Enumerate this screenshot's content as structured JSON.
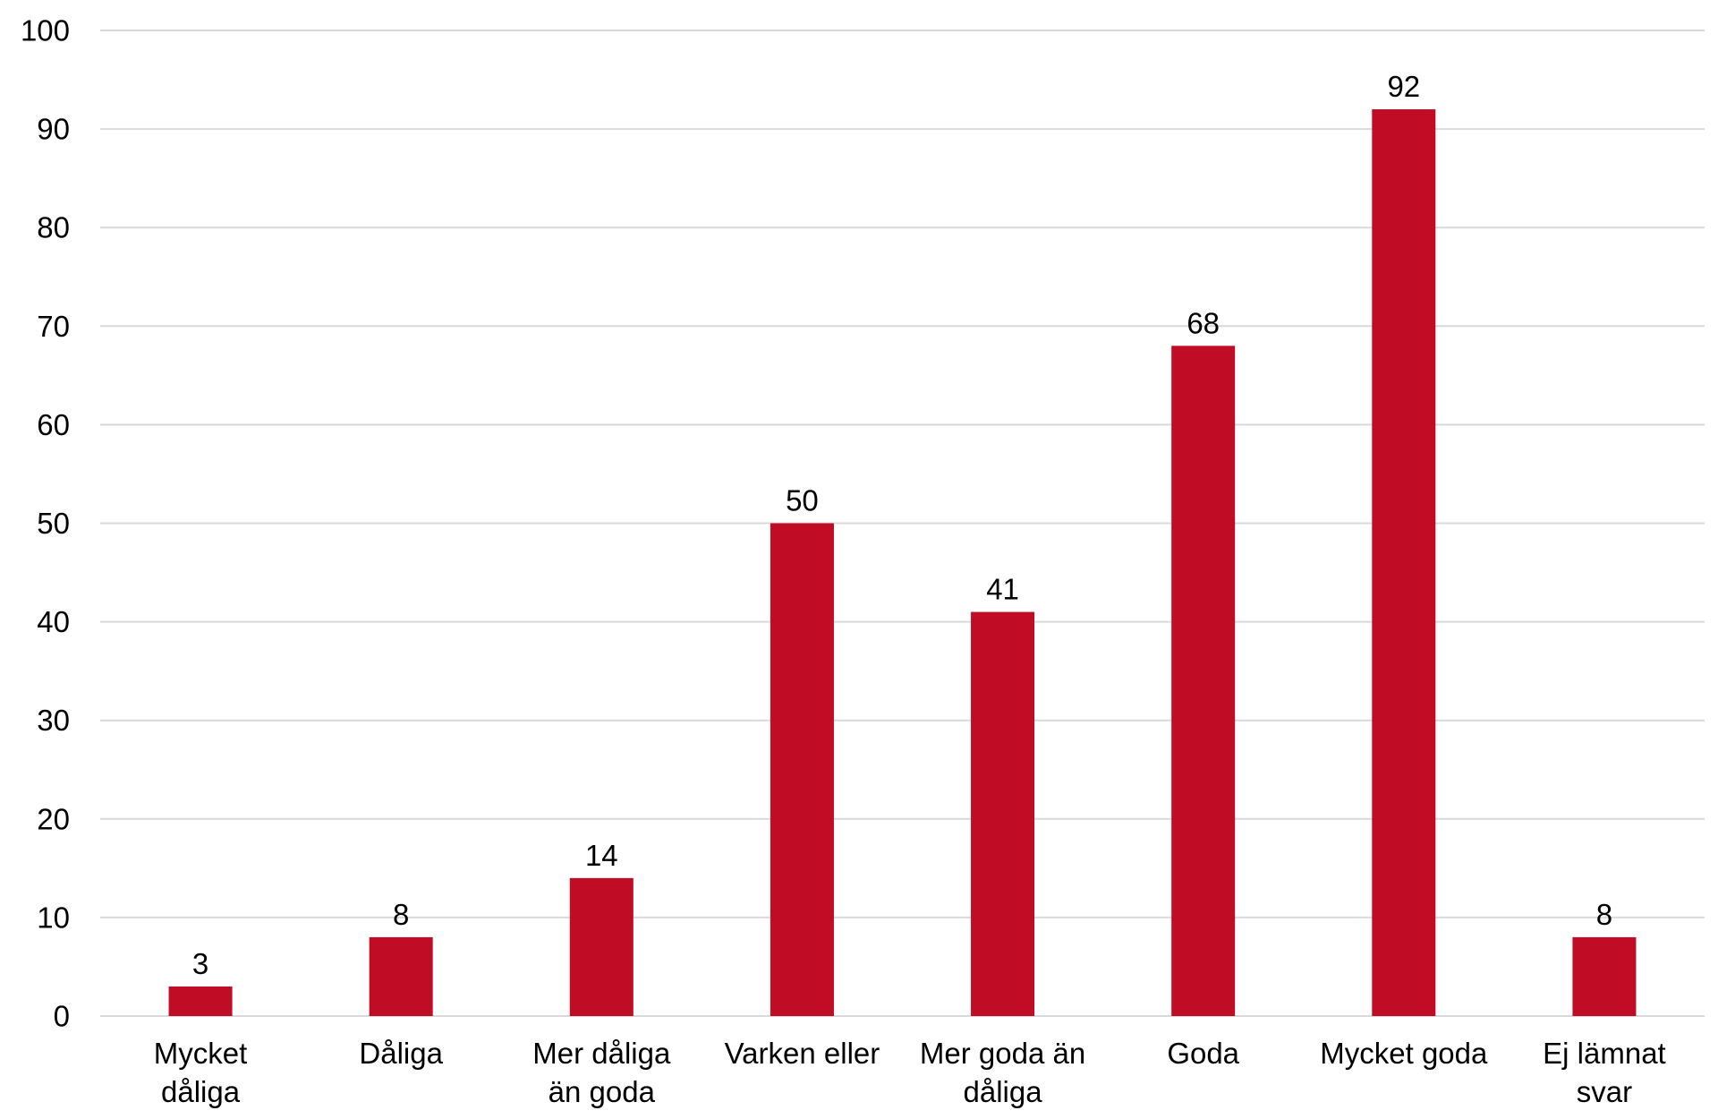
{
  "chart_data": {
    "type": "bar",
    "categories": [
      [
        "Mycket",
        "dåliga"
      ],
      [
        "Dåliga"
      ],
      [
        "Mer dåliga",
        "än goda"
      ],
      [
        "Varken eller"
      ],
      [
        "Mer goda än",
        "dåliga"
      ],
      [
        "Goda"
      ],
      [
        "Mycket goda"
      ],
      [
        "Ej lämnat",
        "svar"
      ]
    ],
    "values": [
      3,
      8,
      14,
      50,
      41,
      68,
      92,
      8
    ],
    "data_labels": [
      "3",
      "8",
      "14",
      "50",
      "41",
      "68",
      "92",
      "8"
    ],
    "yticks": [
      "0",
      "10",
      "20",
      "30",
      "40",
      "50",
      "60",
      "70",
      "80",
      "90",
      "100"
    ],
    "ylim": [
      0,
      100
    ],
    "title": "",
    "xlabel": "",
    "ylabel": "",
    "grid": "horizontal",
    "bar_color": "#c00c24",
    "grid_color": "#d9d9d9"
  }
}
